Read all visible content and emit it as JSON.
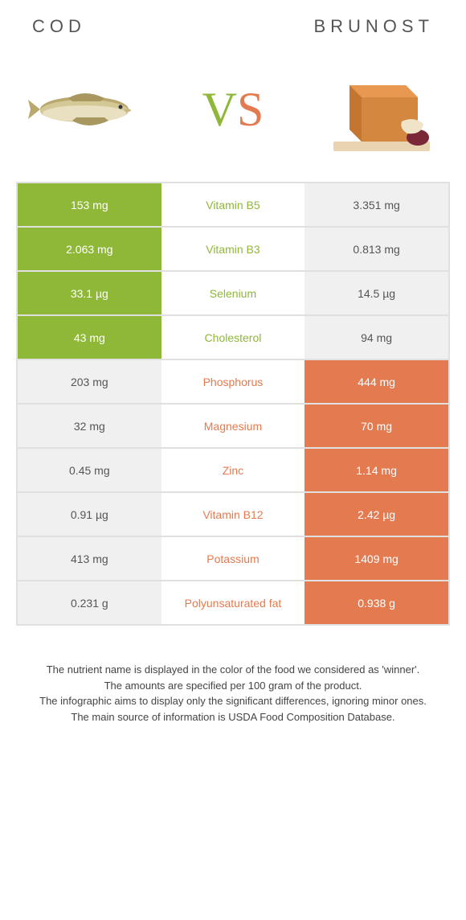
{
  "header": {
    "left_title": "COD",
    "right_title": "BRUNOST"
  },
  "vs": {
    "v": "V",
    "s": "S"
  },
  "colors": {
    "left_bg": "#8fb738",
    "right_bg": "#e47a4f",
    "neutral_bg": "#f0f0f0",
    "winner_left_text": "#8fb738",
    "winner_right_text": "#e47a4f",
    "border": "#e0e0e0"
  },
  "table": {
    "rows": [
      {
        "left": "153 mg",
        "mid": "Vitamin B5",
        "right": "3.351 mg",
        "winner": "left"
      },
      {
        "left": "2.063 mg",
        "mid": "Vitamin B3",
        "right": "0.813 mg",
        "winner": "left"
      },
      {
        "left": "33.1 µg",
        "mid": "Selenium",
        "right": "14.5 µg",
        "winner": "left"
      },
      {
        "left": "43 mg",
        "mid": "Cholesterol",
        "right": "94 mg",
        "winner": "left"
      },
      {
        "left": "203 mg",
        "mid": "Phosphorus",
        "right": "444 mg",
        "winner": "right"
      },
      {
        "left": "32 mg",
        "mid": "Magnesium",
        "right": "70 mg",
        "winner": "right"
      },
      {
        "left": "0.45 mg",
        "mid": "Zinc",
        "right": "1.14 mg",
        "winner": "right"
      },
      {
        "left": "0.91 µg",
        "mid": "Vitamin B12",
        "right": "2.42 µg",
        "winner": "right"
      },
      {
        "left": "413 mg",
        "mid": "Potassium",
        "right": "1409 mg",
        "winner": "right"
      },
      {
        "left": "0.231 g",
        "mid": "Polyunsaturated fat",
        "right": "0.938 g",
        "winner": "right"
      }
    ]
  },
  "footer": {
    "line1": "The nutrient name is displayed in the color of the food we considered as 'winner'.",
    "line2": "The amounts are specified per 100 gram of the product.",
    "line3": "The infographic aims to display only the significant differences, ignoring minor ones.",
    "line4": "The main source of information is USDA Food Composition Database."
  }
}
